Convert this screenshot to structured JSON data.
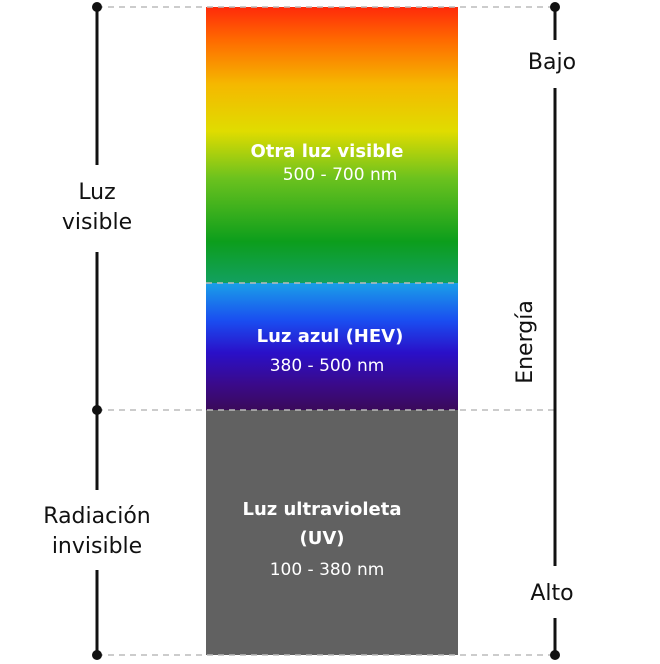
{
  "left_labels": [
    {
      "lines": [
        "Luz",
        "visible"
      ]
    },
    {
      "lines": [
        "Radiación",
        "invisible"
      ]
    }
  ],
  "energy": {
    "axis_label": "Energía",
    "low": "Bajo",
    "high": "Alto"
  },
  "bands": [
    {
      "title_lines": [
        "Otra luz visible"
      ],
      "range": "500 - 700 nm"
    },
    {
      "title_lines": [
        "Luz azul (HEV)"
      ],
      "range": "380 - 500 nm"
    },
    {
      "title_lines": [
        "Luz ultravioleta",
        "(UV)"
      ],
      "range": "100 - 380 nm"
    }
  ]
}
